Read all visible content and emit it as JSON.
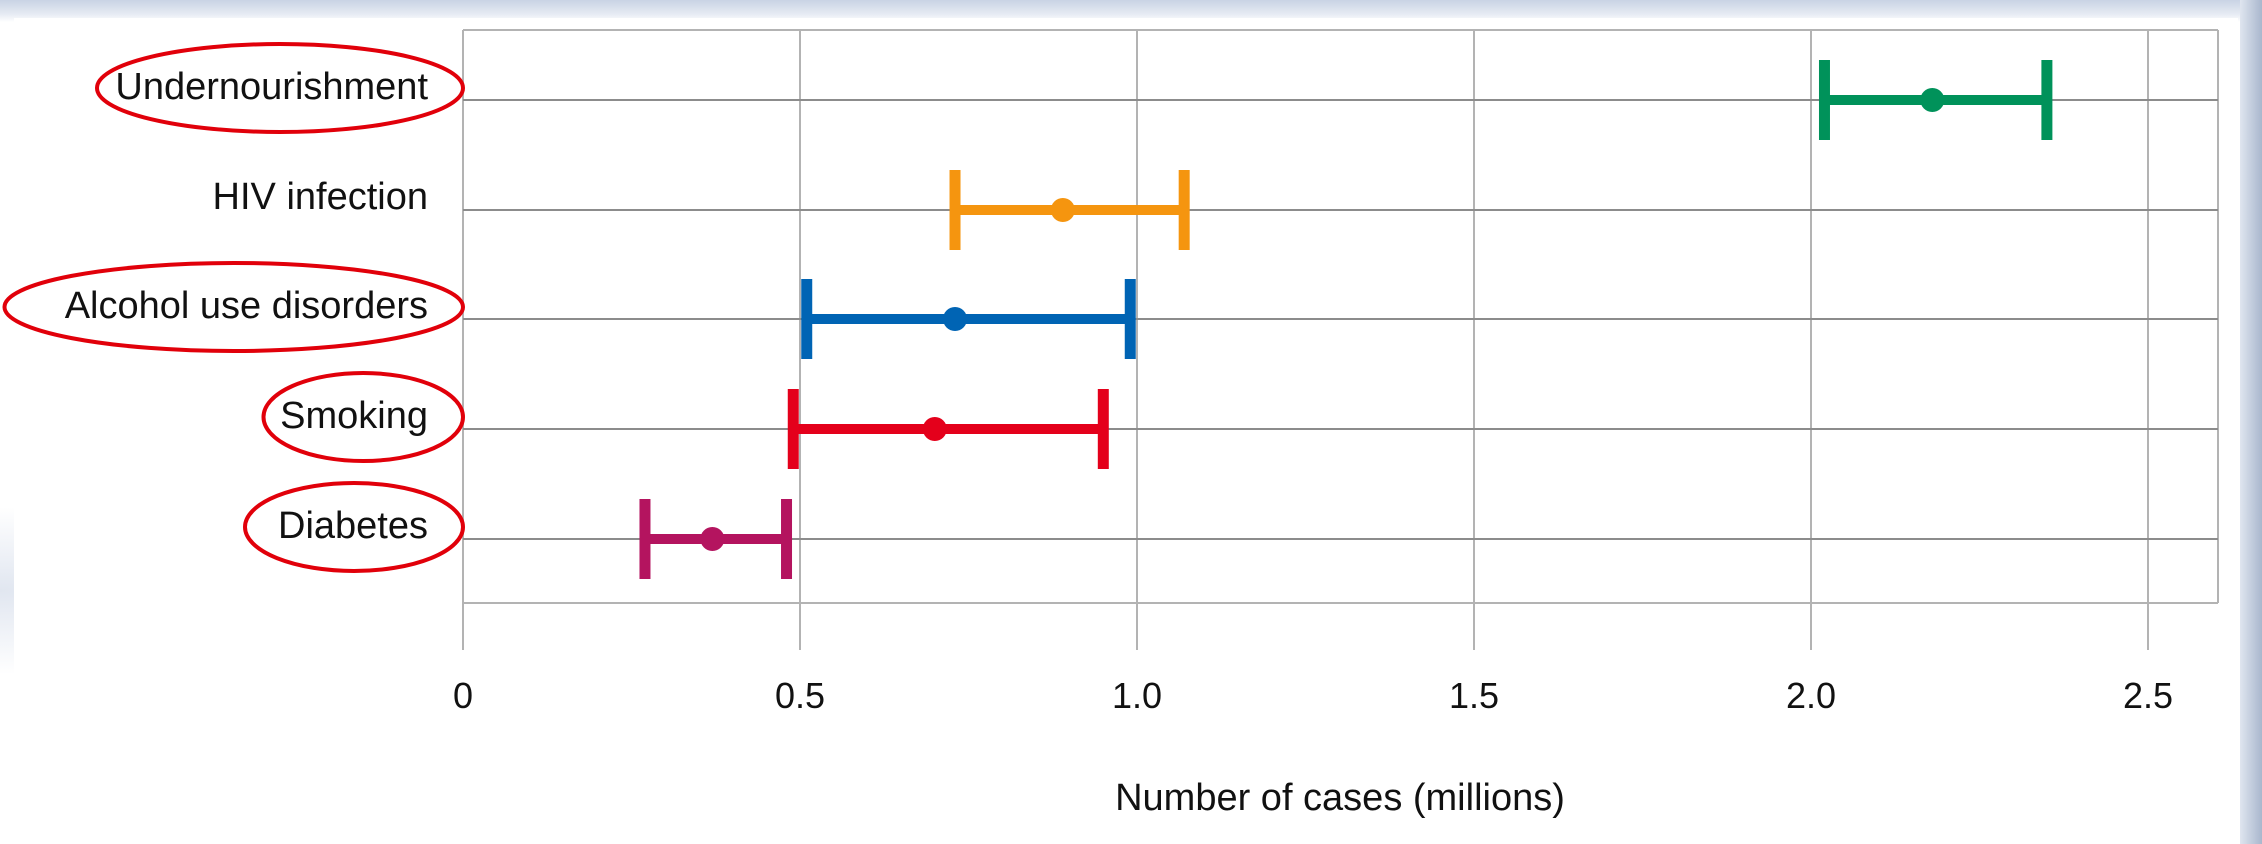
{
  "chart_data": {
    "type": "scatter",
    "subtype": "forest-plot-with-error-bars",
    "xlabel": "Number of cases (millions)",
    "xlim": [
      0,
      2.6
    ],
    "x_ticks": [
      {
        "value": 0,
        "label": "0"
      },
      {
        "value": 0.5,
        "label": "0.5"
      },
      {
        "value": 1.0,
        "label": "1.0"
      },
      {
        "value": 1.5,
        "label": "1.5"
      },
      {
        "value": 2.0,
        "label": "2.0"
      },
      {
        "value": 2.5,
        "label": "2.5"
      }
    ],
    "grid": {
      "horizontal": true,
      "vertical": true
    },
    "categories": [
      {
        "label": "Undernourishment",
        "value": 2.18,
        "low": 2.02,
        "high": 2.35,
        "color": "#00925a",
        "circled": true
      },
      {
        "label": "HIV infection",
        "value": 0.89,
        "low": 0.73,
        "high": 1.07,
        "color": "#f5950f",
        "circled": false
      },
      {
        "label": "Alcohol use disorders",
        "value": 0.73,
        "low": 0.51,
        "high": 0.99,
        "color": "#0064b4",
        "circled": true
      },
      {
        "label": "Smoking",
        "value": 0.7,
        "low": 0.49,
        "high": 0.95,
        "color": "#e4001b",
        "circled": true
      },
      {
        "label": "Diabetes",
        "value": 0.37,
        "low": 0.27,
        "high": 0.48,
        "color": "#b4145f",
        "circled": true
      }
    ],
    "annotation_color": "#e1000a"
  }
}
